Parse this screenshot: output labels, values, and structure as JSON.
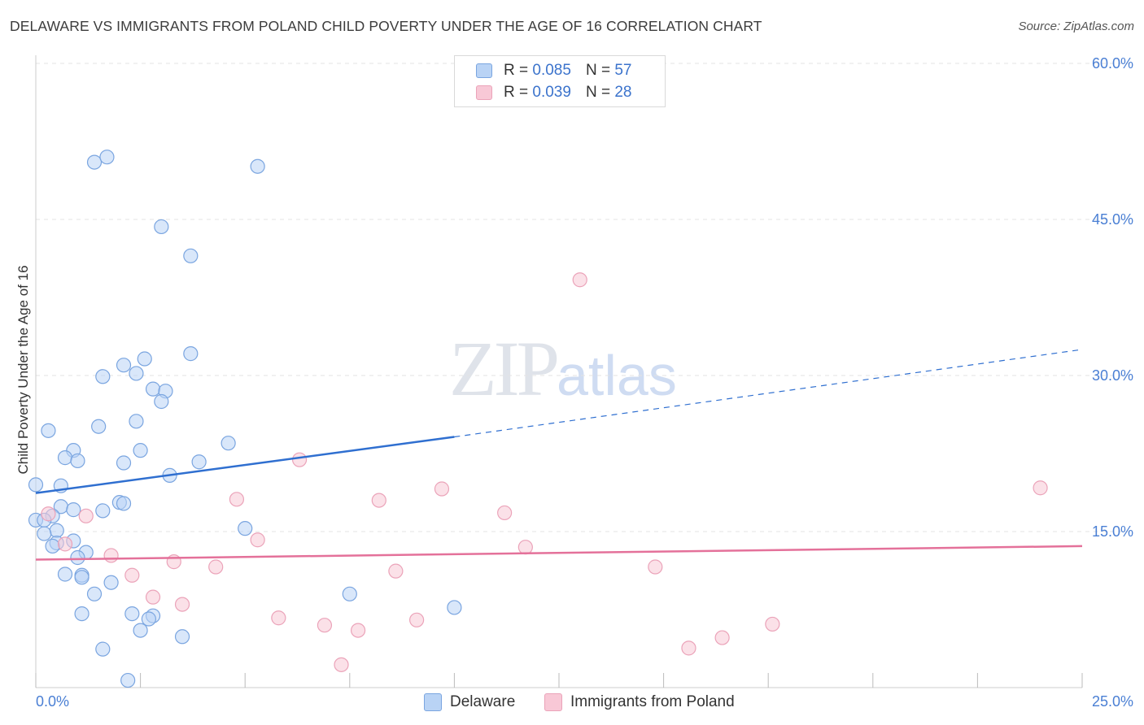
{
  "title": "DELAWARE VS IMMIGRANTS FROM POLAND CHILD POVERTY UNDER THE AGE OF 16 CORRELATION CHART",
  "source": "Source: ZipAtlas.com",
  "watermark": {
    "zip": "ZIP",
    "atlas": "atlas"
  },
  "legend": {
    "delaware": {
      "r_label": "R = ",
      "r_value": "0.085",
      "n_label": "N = ",
      "n_value": "57"
    },
    "poland": {
      "r_label": "R = ",
      "r_value": "0.039",
      "n_label": "N = ",
      "n_value": "28"
    }
  },
  "bottom_legend": {
    "delaware": "Delaware",
    "poland": "Immigrants from Poland"
  },
  "colors": {
    "delaware_fill": "#b9d3f5",
    "delaware_stroke": "#7aa5e0",
    "delaware_line": "#2f6fd0",
    "poland_fill": "#f8c8d6",
    "poland_stroke": "#eba3b9",
    "poland_line": "#e4719a",
    "grid": "#e3e3e3",
    "tick_text": "#4a7fd4"
  },
  "chart_data": {
    "type": "scatter",
    "title": "DELAWARE VS IMMIGRANTS FROM POLAND CHILD POVERTY UNDER THE AGE OF 16 CORRELATION CHART",
    "xlabel": "",
    "ylabel": "Child Poverty Under the Age of 16",
    "xlim": [
      0,
      25
    ],
    "ylim": [
      0,
      60
    ],
    "x_tick_labels": [
      {
        "value": 0,
        "label": "0.0%"
      },
      {
        "value": 25,
        "label": "25.0%"
      }
    ],
    "y_tick_labels": [
      {
        "value": 15,
        "label": "15.0%"
      },
      {
        "value": 30,
        "label": "30.0%"
      },
      {
        "value": 45,
        "label": "45.0%"
      },
      {
        "value": 60,
        "label": "60.0%"
      }
    ],
    "series": [
      {
        "name": "Delaware",
        "points": [
          [
            1.4,
            50.5
          ],
          [
            1.7,
            51.0
          ],
          [
            5.3,
            50.1
          ],
          [
            3.0,
            44.3
          ],
          [
            3.7,
            41.5
          ],
          [
            3.7,
            32.1
          ],
          [
            2.6,
            31.6
          ],
          [
            2.1,
            31.0
          ],
          [
            2.4,
            30.2
          ],
          [
            1.6,
            29.9
          ],
          [
            2.8,
            28.7
          ],
          [
            3.1,
            28.5
          ],
          [
            3.0,
            27.5
          ],
          [
            2.4,
            25.6
          ],
          [
            1.5,
            25.1
          ],
          [
            0.3,
            24.7
          ],
          [
            4.6,
            23.5
          ],
          [
            0.9,
            22.8
          ],
          [
            2.5,
            22.8
          ],
          [
            0.7,
            22.1
          ],
          [
            1.0,
            21.8
          ],
          [
            2.1,
            21.6
          ],
          [
            3.9,
            21.7
          ],
          [
            3.2,
            20.4
          ],
          [
            0.0,
            19.5
          ],
          [
            0.6,
            19.4
          ],
          [
            2.0,
            17.8
          ],
          [
            2.1,
            17.7
          ],
          [
            0.6,
            17.4
          ],
          [
            0.9,
            17.1
          ],
          [
            1.6,
            17.0
          ],
          [
            0.4,
            16.5
          ],
          [
            0.0,
            16.1
          ],
          [
            0.2,
            16.1
          ],
          [
            5.0,
            15.3
          ],
          [
            0.5,
            15.1
          ],
          [
            0.2,
            14.8
          ],
          [
            0.9,
            14.1
          ],
          [
            0.5,
            13.9
          ],
          [
            0.4,
            13.6
          ],
          [
            1.2,
            13.0
          ],
          [
            1.0,
            12.5
          ],
          [
            0.7,
            10.9
          ],
          [
            1.1,
            10.8
          ],
          [
            1.1,
            10.6
          ],
          [
            1.8,
            10.1
          ],
          [
            1.4,
            9.0
          ],
          [
            7.5,
            9.0
          ],
          [
            10.0,
            7.7
          ],
          [
            1.1,
            7.1
          ],
          [
            2.3,
            7.1
          ],
          [
            2.8,
            6.9
          ],
          [
            2.7,
            6.6
          ],
          [
            2.5,
            5.5
          ],
          [
            3.5,
            4.9
          ],
          [
            1.6,
            3.7
          ],
          [
            2.2,
            0.7
          ]
        ],
        "trend": {
          "x_start": 0,
          "y_start": 18.7,
          "x_solid_end": 10.0,
          "y_solid_end": 24.1,
          "x_end": 25,
          "y_end": 32.5
        }
      },
      {
        "name": "Immigrants from Poland",
        "points": [
          [
            13.0,
            39.2
          ],
          [
            6.3,
            21.9
          ],
          [
            9.7,
            19.1
          ],
          [
            24.0,
            19.2
          ],
          [
            4.8,
            18.1
          ],
          [
            8.2,
            18.0
          ],
          [
            0.3,
            16.7
          ],
          [
            1.2,
            16.5
          ],
          [
            11.2,
            16.8
          ],
          [
            5.3,
            14.2
          ],
          [
            0.7,
            13.8
          ],
          [
            11.7,
            13.5
          ],
          [
            1.8,
            12.7
          ],
          [
            3.3,
            12.1
          ],
          [
            4.3,
            11.6
          ],
          [
            14.8,
            11.6
          ],
          [
            8.6,
            11.2
          ],
          [
            2.3,
            10.8
          ],
          [
            2.8,
            8.7
          ],
          [
            3.5,
            8.0
          ],
          [
            5.8,
            6.7
          ],
          [
            9.1,
            6.5
          ],
          [
            6.9,
            6.0
          ],
          [
            17.6,
            6.1
          ],
          [
            7.7,
            5.5
          ],
          [
            16.4,
            4.8
          ],
          [
            15.6,
            3.8
          ],
          [
            7.3,
            2.2
          ]
        ],
        "trend": {
          "x_start": 0,
          "y_start": 12.3,
          "x_end": 25,
          "y_end": 13.6
        }
      }
    ],
    "grid": true,
    "legend_position": "top-center"
  }
}
